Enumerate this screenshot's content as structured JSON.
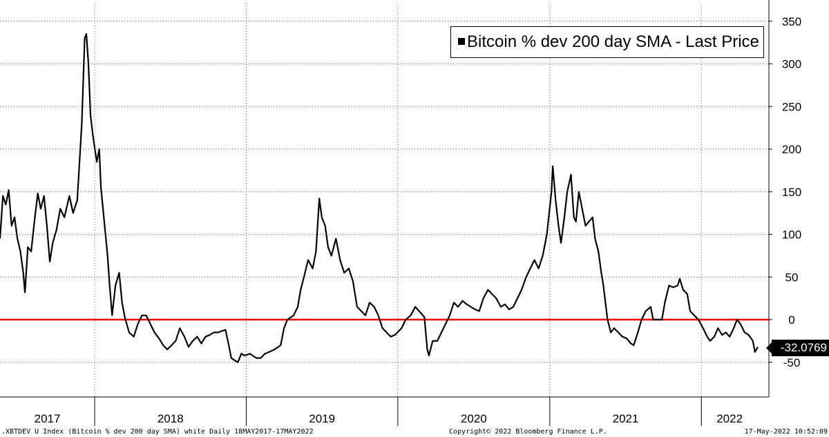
{
  "chart_data": {
    "type": "line",
    "title": "",
    "xlabel": "",
    "ylabel": "",
    "ylim": [
      -90,
      360
    ],
    "y_ticks": [
      350,
      300,
      250,
      200,
      150,
      100,
      50,
      0,
      -50
    ],
    "grid": true,
    "legend_placement": "top-right",
    "x_range": [
      "2017-05-18",
      "2022-05-17"
    ],
    "x_year_labels": [
      "2017",
      "2018",
      "2019",
      "2020",
      "2021",
      "2022"
    ],
    "series": [
      {
        "name": "Bitcoin % dev 200 day SMA - Last Price",
        "color": "#000000",
        "points": [
          [
            "2017-05-18",
            95
          ],
          [
            "2017-05-25",
            145
          ],
          [
            "2017-06-01",
            135
          ],
          [
            "2017-06-08",
            152
          ],
          [
            "2017-06-15",
            110
          ],
          [
            "2017-06-22",
            120
          ],
          [
            "2017-06-29",
            95
          ],
          [
            "2017-07-06",
            80
          ],
          [
            "2017-07-13",
            55
          ],
          [
            "2017-07-17",
            32
          ],
          [
            "2017-07-24",
            85
          ],
          [
            "2017-08-01",
            80
          ],
          [
            "2017-08-10",
            120
          ],
          [
            "2017-08-17",
            148
          ],
          [
            "2017-08-24",
            130
          ],
          [
            "2017-09-01",
            145
          ],
          [
            "2017-09-08",
            110
          ],
          [
            "2017-09-15",
            68
          ],
          [
            "2017-09-22",
            90
          ],
          [
            "2017-10-01",
            105
          ],
          [
            "2017-10-10",
            130
          ],
          [
            "2017-10-20",
            120
          ],
          [
            "2017-11-01",
            145
          ],
          [
            "2017-11-10",
            125
          ],
          [
            "2017-11-20",
            140
          ],
          [
            "2017-12-01",
            230
          ],
          [
            "2017-12-08",
            330
          ],
          [
            "2017-12-12",
            335
          ],
          [
            "2017-12-17",
            300
          ],
          [
            "2017-12-22",
            240
          ],
          [
            "2017-12-28",
            215
          ],
          [
            "2018-01-06",
            185
          ],
          [
            "2018-01-12",
            200
          ],
          [
            "2018-01-16",
            155
          ],
          [
            "2018-01-25",
            110
          ],
          [
            "2018-02-01",
            75
          ],
          [
            "2018-02-06",
            40
          ],
          [
            "2018-02-12",
            5
          ],
          [
            "2018-02-20",
            40
          ],
          [
            "2018-03-01",
            55
          ],
          [
            "2018-03-08",
            20
          ],
          [
            "2018-03-15",
            2
          ],
          [
            "2018-03-25",
            -15
          ],
          [
            "2018-04-05",
            -20
          ],
          [
            "2018-04-15",
            -5
          ],
          [
            "2018-04-25",
            5
          ],
          [
            "2018-05-05",
            5
          ],
          [
            "2018-05-15",
            -5
          ],
          [
            "2018-05-25",
            -15
          ],
          [
            "2018-06-05",
            -22
          ],
          [
            "2018-06-15",
            -30
          ],
          [
            "2018-06-25",
            -35
          ],
          [
            "2018-07-05",
            -30
          ],
          [
            "2018-07-15",
            -25
          ],
          [
            "2018-07-25",
            -10
          ],
          [
            "2018-08-05",
            -20
          ],
          [
            "2018-08-15",
            -32
          ],
          [
            "2018-08-25",
            -25
          ],
          [
            "2018-09-05",
            -20
          ],
          [
            "2018-09-15",
            -28
          ],
          [
            "2018-09-25",
            -20
          ],
          [
            "2018-10-05",
            -18
          ],
          [
            "2018-10-15",
            -15
          ],
          [
            "2018-10-25",
            -15
          ],
          [
            "2018-11-05",
            -13
          ],
          [
            "2018-11-12",
            -12
          ],
          [
            "2018-11-20",
            -30
          ],
          [
            "2018-11-26",
            -45
          ],
          [
            "2018-12-05",
            -48
          ],
          [
            "2018-12-12",
            -50
          ],
          [
            "2018-12-20",
            -40
          ],
          [
            "2018-12-28",
            -42
          ],
          [
            "2019-01-10",
            -40
          ],
          [
            "2019-01-25",
            -45
          ],
          [
            "2019-02-05",
            -45
          ],
          [
            "2019-02-15",
            -40
          ],
          [
            "2019-02-25",
            -38
          ],
          [
            "2019-03-10",
            -35
          ],
          [
            "2019-03-25",
            -30
          ],
          [
            "2019-04-02",
            -10
          ],
          [
            "2019-04-10",
            0
          ],
          [
            "2019-04-25",
            5
          ],
          [
            "2019-05-05",
            15
          ],
          [
            "2019-05-12",
            35
          ],
          [
            "2019-05-20",
            50
          ],
          [
            "2019-05-30",
            70
          ],
          [
            "2019-06-10",
            60
          ],
          [
            "2019-06-18",
            80
          ],
          [
            "2019-06-26",
            142
          ],
          [
            "2019-07-02",
            120
          ],
          [
            "2019-07-10",
            110
          ],
          [
            "2019-07-17",
            85
          ],
          [
            "2019-07-25",
            75
          ],
          [
            "2019-08-05",
            95
          ],
          [
            "2019-08-15",
            70
          ],
          [
            "2019-08-25",
            55
          ],
          [
            "2019-09-05",
            60
          ],
          [
            "2019-09-15",
            45
          ],
          [
            "2019-09-25",
            15
          ],
          [
            "2019-10-05",
            10
          ],
          [
            "2019-10-15",
            5
          ],
          [
            "2019-10-25",
            20
          ],
          [
            "2019-11-05",
            15
          ],
          [
            "2019-11-15",
            5
          ],
          [
            "2019-11-25",
            -10
          ],
          [
            "2019-12-05",
            -15
          ],
          [
            "2019-12-15",
            -20
          ],
          [
            "2019-12-25",
            -18
          ],
          [
            "2020-01-10",
            -10
          ],
          [
            "2020-01-20",
            0
          ],
          [
            "2020-02-01",
            5
          ],
          [
            "2020-02-12",
            15
          ],
          [
            "2020-02-25",
            8
          ],
          [
            "2020-03-05",
            3
          ],
          [
            "2020-03-12",
            -35
          ],
          [
            "2020-03-16",
            -42
          ],
          [
            "2020-03-25",
            -25
          ],
          [
            "2020-04-05",
            -25
          ],
          [
            "2020-04-15",
            -15
          ],
          [
            "2020-04-25",
            -5
          ],
          [
            "2020-05-05",
            5
          ],
          [
            "2020-05-15",
            20
          ],
          [
            "2020-05-25",
            15
          ],
          [
            "2020-06-05",
            22
          ],
          [
            "2020-06-15",
            18
          ],
          [
            "2020-06-25",
            15
          ],
          [
            "2020-07-05",
            12
          ],
          [
            "2020-07-15",
            10
          ],
          [
            "2020-07-25",
            25
          ],
          [
            "2020-08-05",
            35
          ],
          [
            "2020-08-15",
            30
          ],
          [
            "2020-08-25",
            25
          ],
          [
            "2020-09-05",
            15
          ],
          [
            "2020-09-15",
            18
          ],
          [
            "2020-09-25",
            12
          ],
          [
            "2020-10-05",
            15
          ],
          [
            "2020-10-15",
            25
          ],
          [
            "2020-10-25",
            35
          ],
          [
            "2020-11-05",
            50
          ],
          [
            "2020-11-15",
            60
          ],
          [
            "2020-11-25",
            70
          ],
          [
            "2020-12-05",
            60
          ],
          [
            "2020-12-15",
            75
          ],
          [
            "2020-12-25",
            100
          ],
          [
            "2021-01-05",
            150
          ],
          [
            "2021-01-08",
            180
          ],
          [
            "2021-01-15",
            140
          ],
          [
            "2021-01-22",
            110
          ],
          [
            "2021-01-28",
            90
          ],
          [
            "2021-02-05",
            120
          ],
          [
            "2021-02-12",
            150
          ],
          [
            "2021-02-21",
            170
          ],
          [
            "2021-02-28",
            120
          ],
          [
            "2021-03-05",
            115
          ],
          [
            "2021-03-12",
            150
          ],
          [
            "2021-03-20",
            130
          ],
          [
            "2021-03-28",
            110
          ],
          [
            "2021-04-05",
            115
          ],
          [
            "2021-04-14",
            120
          ],
          [
            "2021-04-20",
            95
          ],
          [
            "2021-04-28",
            80
          ],
          [
            "2021-05-05",
            55
          ],
          [
            "2021-05-10",
            40
          ],
          [
            "2021-05-15",
            20
          ],
          [
            "2021-05-20",
            0
          ],
          [
            "2021-05-28",
            -15
          ],
          [
            "2021-06-05",
            -10
          ],
          [
            "2021-06-15",
            -15
          ],
          [
            "2021-06-25",
            -20
          ],
          [
            "2021-07-05",
            -22
          ],
          [
            "2021-07-15",
            -28
          ],
          [
            "2021-07-22",
            -30
          ],
          [
            "2021-08-01",
            -15
          ],
          [
            "2021-08-10",
            0
          ],
          [
            "2021-08-20",
            10
          ],
          [
            "2021-09-01",
            15
          ],
          [
            "2021-09-07",
            0
          ],
          [
            "2021-09-20",
            0
          ],
          [
            "2021-09-28",
            0
          ],
          [
            "2021-10-05",
            20
          ],
          [
            "2021-10-15",
            40
          ],
          [
            "2021-10-25",
            38
          ],
          [
            "2021-11-05",
            40
          ],
          [
            "2021-11-10",
            48
          ],
          [
            "2021-11-18",
            35
          ],
          [
            "2021-11-28",
            30
          ],
          [
            "2021-12-05",
            10
          ],
          [
            "2021-12-15",
            5
          ],
          [
            "2021-12-25",
            0
          ],
          [
            "2022-01-05",
            -10
          ],
          [
            "2022-01-15",
            -20
          ],
          [
            "2022-01-22",
            -25
          ],
          [
            "2022-02-01",
            -20
          ],
          [
            "2022-02-10",
            -10
          ],
          [
            "2022-02-20",
            -18
          ],
          [
            "2022-03-01",
            -15
          ],
          [
            "2022-03-10",
            -20
          ],
          [
            "2022-03-20",
            -10
          ],
          [
            "2022-03-28",
            0
          ],
          [
            "2022-04-05",
            -5
          ],
          [
            "2022-04-15",
            -15
          ],
          [
            "2022-04-25",
            -18
          ],
          [
            "2022-05-05",
            -25
          ],
          [
            "2022-05-10",
            -38
          ],
          [
            "2022-05-17",
            -32.0769
          ]
        ]
      }
    ],
    "reference_line": {
      "value": 0,
      "color": "#ff0000"
    },
    "last_value_label": "-32.0769"
  },
  "footer": {
    "left": ".XBTDEV U Index (Bitcoin % dev 200 day SMA) white  Daily 18MAY2017-17MAY2022",
    "center": "Copyright© 2022 Bloomberg Finance L.P.",
    "right": "17-May-2022 10:52:09"
  }
}
